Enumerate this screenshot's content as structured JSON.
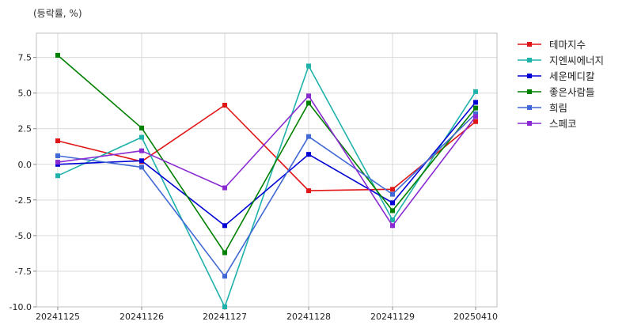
{
  "chart_data": {
    "type": "line",
    "unit_label": "(등락률, %)",
    "categories": [
      "20241125",
      "20241126",
      "20241127",
      "20241128",
      "20241129",
      "20250410"
    ],
    "ylim": [
      -10,
      9.2
    ],
    "yticks": [
      7.5,
      5.0,
      2.5,
      0.0,
      -2.5,
      -5.0,
      -7.5,
      -10.0
    ],
    "ytick_labels": [
      "7.5",
      "5.0",
      "2.5",
      "0.0",
      "-2.5",
      "-5.0",
      "-7.5",
      "-10.0"
    ],
    "grid": true,
    "legend_position": "top-right outside",
    "series": [
      {
        "name": "테마지수",
        "color": "#e01515",
        "values": [
          1.65,
          0.2,
          4.15,
          -1.85,
          -1.75,
          3.0
        ]
      },
      {
        "name": "지엔씨에너지",
        "color": "#1fb2aa",
        "values": [
          -0.8,
          1.9,
          -10.0,
          6.9,
          -3.9,
          5.1
        ]
      },
      {
        "name": "세운메디칼",
        "color": "#0000d5",
        "values": [
          0.0,
          0.25,
          -4.3,
          0.7,
          -2.7,
          4.35
        ]
      },
      {
        "name": "좋은사람들",
        "color": "#008000",
        "values": [
          7.65,
          2.55,
          -6.2,
          4.3,
          -3.25,
          3.95
        ]
      },
      {
        "name": "희림",
        "color": "#4169d5",
        "values": [
          0.6,
          -0.2,
          -7.85,
          1.95,
          -2.1,
          3.55
        ]
      },
      {
        "name": "스페코",
        "color": "#8a2bd2",
        "values": [
          0.15,
          0.95,
          -1.65,
          4.8,
          -4.3,
          3.35
        ]
      }
    ]
  }
}
